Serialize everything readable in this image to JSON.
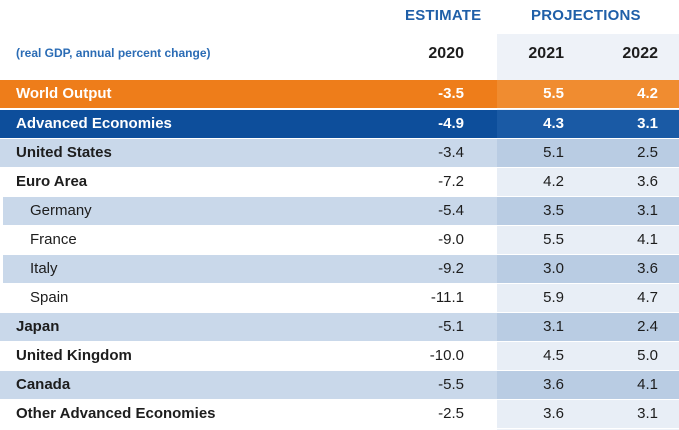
{
  "header": {
    "estimate_label": "ESTIMATE",
    "projections_label": "PROJECTIONS",
    "subtitle": "(real GDP, annual percent change)",
    "years": [
      "2020",
      "2021",
      "2022"
    ]
  },
  "rows": [
    {
      "name": "World Output",
      "v2020": "-3.5",
      "v2021": "5.5",
      "v2022": "4.2"
    },
    {
      "name": "Advanced Economies",
      "v2020": "-4.9",
      "v2021": "4.3",
      "v2022": "3.1"
    },
    {
      "name": "United States",
      "v2020": "-3.4",
      "v2021": "5.1",
      "v2022": "2.5"
    },
    {
      "name": "Euro Area",
      "v2020": "-7.2",
      "v2021": "4.2",
      "v2022": "3.6"
    },
    {
      "name": "Germany",
      "v2020": "-5.4",
      "v2021": "3.5",
      "v2022": "3.1"
    },
    {
      "name": "France",
      "v2020": "-9.0",
      "v2021": "5.5",
      "v2022": "4.1"
    },
    {
      "name": "Italy",
      "v2020": "-9.2",
      "v2021": "3.0",
      "v2022": "3.6"
    },
    {
      "name": "Spain",
      "v2020": "-11.1",
      "v2021": "5.9",
      "v2022": "4.7"
    },
    {
      "name": "Japan",
      "v2020": "-5.1",
      "v2021": "3.1",
      "v2022": "2.4"
    },
    {
      "name": "United Kingdom",
      "v2020": "-10.0",
      "v2021": "4.5",
      "v2022": "5.0"
    },
    {
      "name": "Canada",
      "v2020": "-5.5",
      "v2021": "3.6",
      "v2022": "4.1"
    },
    {
      "name": "Other Advanced Economies",
      "v2020": "-2.5",
      "v2021": "3.6",
      "v2022": "3.1"
    }
  ],
  "colors": {
    "world_output_row": "#ee7d1a",
    "advanced_economies_row": "#0d4e9b",
    "header_text": "#1f5fa8",
    "shaded_row": "#c9d8ea"
  }
}
